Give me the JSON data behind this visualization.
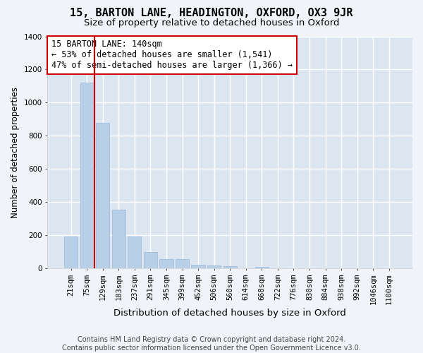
{
  "title1": "15, BARTON LANE, HEADINGTON, OXFORD, OX3 9JR",
  "title2": "Size of property relative to detached houses in Oxford",
  "xlabel": "Distribution of detached houses by size in Oxford",
  "ylabel": "Number of detached properties",
  "bar_labels": [
    "21sqm",
    "75sqm",
    "129sqm",
    "183sqm",
    "237sqm",
    "291sqm",
    "345sqm",
    "399sqm",
    "452sqm",
    "506sqm",
    "560sqm",
    "614sqm",
    "668sqm",
    "722sqm",
    "776sqm",
    "830sqm",
    "884sqm",
    "938sqm",
    "992sqm",
    "1046sqm",
    "1100sqm"
  ],
  "bar_heights": [
    190,
    1120,
    880,
    355,
    190,
    100,
    57,
    57,
    22,
    18,
    12,
    0,
    10,
    0,
    0,
    0,
    0,
    0,
    0,
    0,
    0
  ],
  "bar_color": "#b8cfe8",
  "bar_edge_color": "#9ab8d8",
  "background_color": "#dce6f0",
  "grid_color": "#ffffff",
  "vline_color": "#cc0000",
  "vline_x": 1.5,
  "annotation_text": "15 BARTON LANE: 140sqm\n← 53% of detached houses are smaller (1,541)\n47% of semi-detached houses are larger (1,366) →",
  "annotation_box_facecolor": "#ffffff",
  "annotation_box_edgecolor": "#cc0000",
  "ylim": [
    0,
    1400
  ],
  "yticks": [
    0,
    200,
    400,
    600,
    800,
    1000,
    1200,
    1400
  ],
  "fig_facecolor": "#f0f4f8",
  "footer": "Contains HM Land Registry data © Crown copyright and database right 2024.\nContains public sector information licensed under the Open Government Licence v3.0.",
  "title1_fontsize": 11,
  "title2_fontsize": 9.5,
  "xlabel_fontsize": 9.5,
  "ylabel_fontsize": 8.5,
  "tick_fontsize": 7.5,
  "annotation_fontsize": 8.5,
  "footer_fontsize": 7
}
